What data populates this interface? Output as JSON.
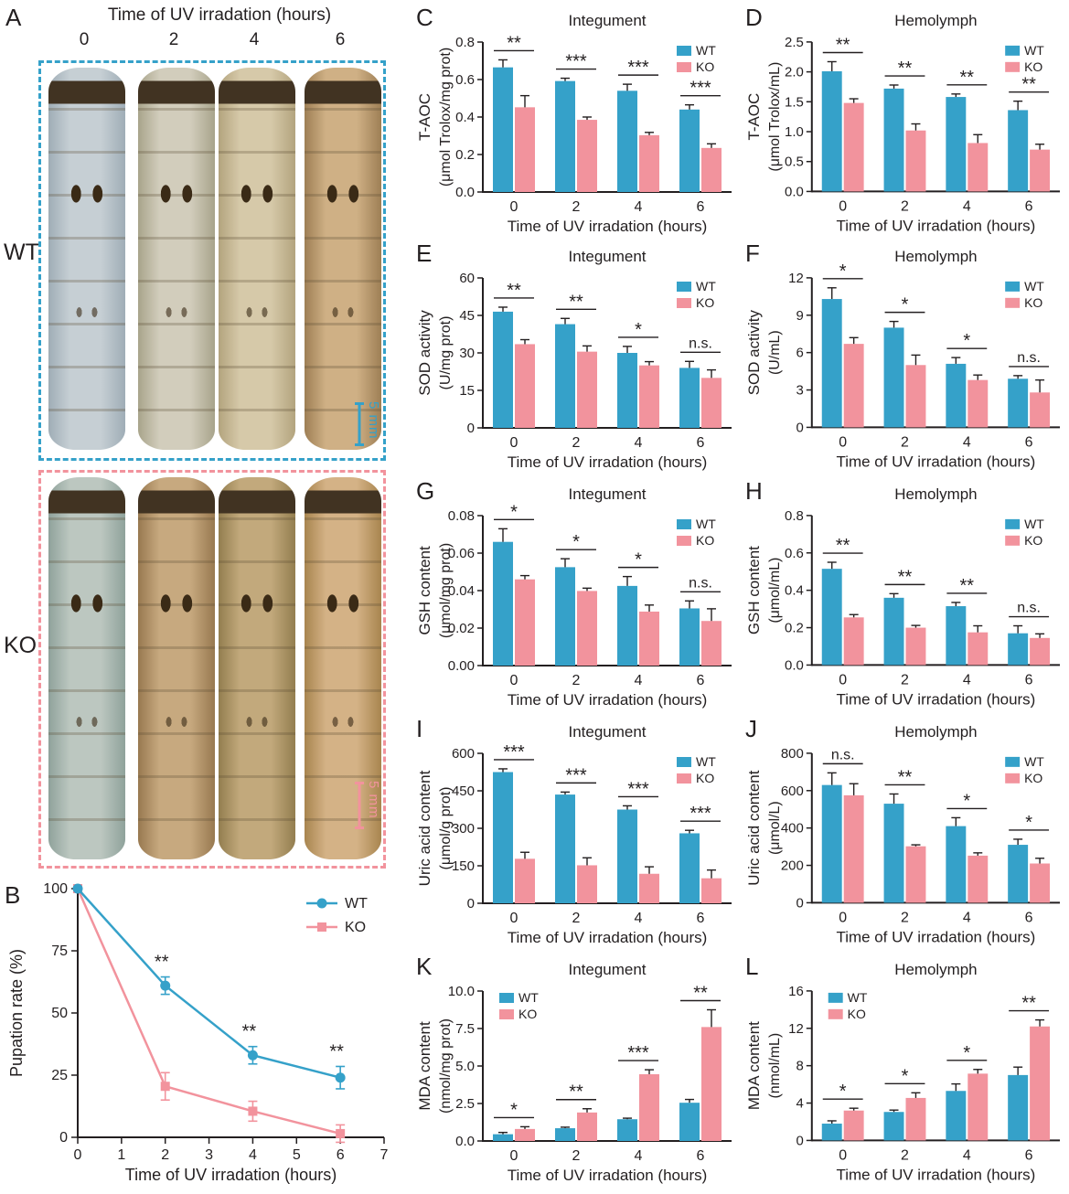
{
  "colors": {
    "wt": "#35A1C9",
    "ko": "#F2939D",
    "axis": "#231F20"
  },
  "figure": {
    "panel_a": {
      "letter": "A",
      "title": "Time of UV irradation (hours)",
      "time_labels": [
        "0",
        "2",
        "4",
        "6"
      ],
      "wt_label": "WT",
      "ko_label": "KO",
      "scale_bar_label": "5 mm",
      "wt_box_color": "#35A1C9",
      "ko_box_color": "#F2939D",
      "wt_larvae": [
        [
          "#c6cfd4",
          "#9fadb6"
        ],
        [
          "#d2cdbc",
          "#a8a48b"
        ],
        [
          "#d6c9a9",
          "#b3a47e"
        ],
        [
          "#cfb085",
          "#9e7f55"
        ]
      ],
      "ko_larvae": [
        [
          "#bcc7c0",
          "#8fa29b"
        ],
        [
          "#c7a97f",
          "#987950"
        ],
        [
          "#c2a97c",
          "#937e4f"
        ],
        [
          "#d4b286",
          "#a8854f"
        ]
      ]
    }
  },
  "chart_data": [
    {
      "type": "line",
      "panel": "B",
      "title": "",
      "ylabel": "Pupation rate (%)",
      "xlabel": "Time of UV irradation (hours)",
      "xlim": [
        0,
        7
      ],
      "xticks": [
        "0",
        "1",
        "2",
        "3",
        "4",
        "5",
        "6",
        "7"
      ],
      "ylim": [
        0,
        100
      ],
      "yticks": [
        0,
        25,
        50,
        75,
        100
      ],
      "ytick_labels": [
        "0",
        "25",
        "50",
        "75",
        "100"
      ],
      "legend_position": "top-right",
      "series": [
        {
          "name": "WT",
          "marker": "circle",
          "x": [
            0,
            2,
            4,
            6
          ],
          "values": [
            100,
            61,
            33,
            24
          ],
          "errors": [
            0,
            3.5,
            3.5,
            4.5
          ]
        },
        {
          "name": "KO",
          "marker": "square",
          "x": [
            0,
            2,
            4,
            6
          ],
          "values": [
            100,
            20.5,
            10.5,
            1.5
          ],
          "errors": [
            0,
            5.5,
            4,
            3.5
          ]
        }
      ],
      "sig": [
        {
          "x": 2,
          "label": "**"
        },
        {
          "x": 4,
          "label": "**"
        },
        {
          "x": 6,
          "label": "**"
        }
      ]
    },
    {
      "type": "bar",
      "panel": "C",
      "title": "Integument",
      "ylabel": [
        "T-AOC",
        "(μmol Trolox/mg prot)"
      ],
      "xlabel": "Time of UV irradation (hours)",
      "categories": [
        "0",
        "2",
        "4",
        "6"
      ],
      "ylim": [
        0,
        0.8
      ],
      "yticks": [
        0,
        0.2,
        0.4,
        0.6,
        0.8
      ],
      "ytick_labels": [
        "0.0",
        "0.2",
        "0.4",
        "0.6",
        "0.8"
      ],
      "legend_position": "right",
      "series": [
        {
          "name": "WT",
          "values": [
            0.665,
            0.592,
            0.54,
            0.44
          ],
          "errors": [
            0.04,
            0.015,
            0.035,
            0.025
          ]
        },
        {
          "name": "KO",
          "values": [
            0.452,
            0.385,
            0.303,
            0.235
          ],
          "errors": [
            0.062,
            0.015,
            0.015,
            0.022
          ]
        }
      ],
      "sig": [
        "**",
        "***",
        "***",
        "***"
      ]
    },
    {
      "type": "bar",
      "panel": "D",
      "title": "Hemolymph",
      "ylabel": [
        "T-AOC",
        "(μmol Trolox/mL)"
      ],
      "xlabel": "Time of UV irradation (hours)",
      "categories": [
        "0",
        "2",
        "4",
        "6"
      ],
      "ylim": [
        0,
        2.5
      ],
      "yticks": [
        0,
        0.5,
        1,
        1.5,
        2,
        2.5
      ],
      "ytick_labels": [
        "0.0",
        "0.5",
        "1.0",
        "1.5",
        "2.0",
        "2.5"
      ],
      "legend_position": "right",
      "series": [
        {
          "name": "WT",
          "values": [
            2.01,
            1.72,
            1.58,
            1.36
          ],
          "errors": [
            0.16,
            0.06,
            0.05,
            0.15
          ]
        },
        {
          "name": "KO",
          "values": [
            1.48,
            1.02,
            0.81,
            0.7
          ],
          "errors": [
            0.07,
            0.11,
            0.14,
            0.09
          ]
        }
      ],
      "sig": [
        "**",
        "**",
        "**",
        "**"
      ]
    },
    {
      "type": "bar",
      "panel": "E",
      "title": "Integument",
      "ylabel": [
        "SOD activity",
        "(U/mg prot)"
      ],
      "xlabel": "Time of UV irradation (hours)",
      "categories": [
        "0",
        "2",
        "4",
        "6"
      ],
      "ylim": [
        0,
        60
      ],
      "yticks": [
        0,
        15,
        30,
        45,
        60
      ],
      "ytick_labels": [
        "0",
        "15",
        "30",
        "45",
        "60"
      ],
      "legend_position": "right",
      "series": [
        {
          "name": "WT",
          "values": [
            46.5,
            41.5,
            30,
            24
          ],
          "errors": [
            1.8,
            2.3,
            2.6,
            2.6
          ]
        },
        {
          "name": "KO",
          "values": [
            33.5,
            30.5,
            25,
            20
          ],
          "errors": [
            1.8,
            2.3,
            1.5,
            3.2
          ]
        }
      ],
      "sig": [
        "**",
        "**",
        "*",
        "n.s."
      ]
    },
    {
      "type": "bar",
      "panel": "F",
      "title": "Hemolymph",
      "ylabel": [
        "SOD activity",
        "(U/mL)"
      ],
      "xlabel": "Time of UV irradation (hours)",
      "categories": [
        "0",
        "2",
        "4",
        "6"
      ],
      "ylim": [
        0,
        12
      ],
      "yticks": [
        0,
        3,
        6,
        9,
        12
      ],
      "ytick_labels": [
        "0",
        "3",
        "6",
        "9",
        "12"
      ],
      "legend_position": "right",
      "series": [
        {
          "name": "WT",
          "values": [
            10.3,
            8,
            5.1,
            3.9
          ],
          "errors": [
            0.9,
            0.5,
            0.5,
            0.25
          ]
        },
        {
          "name": "KO",
          "values": [
            6.7,
            5,
            3.8,
            2.8
          ],
          "errors": [
            0.5,
            0.8,
            0.4,
            1
          ]
        }
      ],
      "sig": [
        "*",
        "*",
        "*",
        "n.s."
      ]
    },
    {
      "type": "bar",
      "panel": "G",
      "title": "Integument",
      "ylabel": [
        "GSH content",
        "(μmol/mg prot)"
      ],
      "xlabel": "Time of UV irradation (hours)",
      "categories": [
        "0",
        "2",
        "4",
        "6"
      ],
      "ylim": [
        0,
        0.08
      ],
      "yticks": [
        0,
        0.02,
        0.04,
        0.06,
        0.08
      ],
      "ytick_labels": [
        "0.00",
        "0.02",
        "0.04",
        "0.06",
        "0.08"
      ],
      "legend_position": "right",
      "series": [
        {
          "name": "WT",
          "values": [
            0.066,
            0.0525,
            0.0425,
            0.0305
          ],
          "errors": [
            0.007,
            0.0045,
            0.005,
            0.004
          ]
        },
        {
          "name": "KO",
          "values": [
            0.046,
            0.0398,
            0.0288,
            0.0238
          ],
          "errors": [
            0.002,
            0.0015,
            0.0035,
            0.0065
          ]
        }
      ],
      "sig": [
        "*",
        "*",
        "*",
        "n.s."
      ]
    },
    {
      "type": "bar",
      "panel": "H",
      "title": "Hemolymph",
      "ylabel": [
        "GSH content",
        "(μmol/mL)"
      ],
      "xlabel": "Time of UV irradation (hours)",
      "categories": [
        "0",
        "2",
        "4",
        "6"
      ],
      "ylim": [
        0,
        0.8
      ],
      "yticks": [
        0,
        0.2,
        0.4,
        0.6,
        0.8
      ],
      "ytick_labels": [
        "0.0",
        "0.2",
        "0.4",
        "0.6",
        "0.8"
      ],
      "legend_position": "right",
      "series": [
        {
          "name": "WT",
          "values": [
            0.515,
            0.36,
            0.315,
            0.17
          ],
          "errors": [
            0.035,
            0.022,
            0.02,
            0.04
          ]
        },
        {
          "name": "KO",
          "values": [
            0.255,
            0.2,
            0.175,
            0.145
          ],
          "errors": [
            0.015,
            0.012,
            0.035,
            0.022
          ]
        }
      ],
      "sig": [
        "**",
        "**",
        "**",
        "n.s."
      ]
    },
    {
      "type": "bar",
      "panel": "I",
      "title": "Integument",
      "ylabel": [
        "Uric acid content",
        "(μmol/g prot)"
      ],
      "xlabel": "Time of UV irradation (hours)",
      "categories": [
        "0",
        "2",
        "4",
        "6"
      ],
      "ylim": [
        0,
        600
      ],
      "yticks": [
        0,
        150,
        300,
        450,
        600
      ],
      "ytick_labels": [
        "0",
        "150",
        "300",
        "450",
        "600"
      ],
      "legend_position": "right",
      "series": [
        {
          "name": "WT",
          "values": [
            525,
            435,
            375,
            280
          ],
          "errors": [
            13,
            10,
            15,
            12
          ]
        },
        {
          "name": "KO",
          "values": [
            178,
            152,
            118,
            100
          ],
          "errors": [
            26,
            30,
            28,
            33
          ]
        }
      ],
      "sig": [
        "***",
        "***",
        "***",
        "***"
      ]
    },
    {
      "type": "bar",
      "panel": "J",
      "title": "Hemolymph",
      "ylabel": [
        "Uric acid content",
        "(μmol/L)"
      ],
      "xlabel": "Time of UV irradation (hours)",
      "categories": [
        "0",
        "2",
        "4",
        "6"
      ],
      "ylim": [
        0,
        800
      ],
      "yticks": [
        0,
        200,
        400,
        600,
        800
      ],
      "ytick_labels": [
        "0",
        "200",
        "400",
        "600",
        "800"
      ],
      "legend_position": "right",
      "series": [
        {
          "name": "WT",
          "values": [
            630,
            530,
            410,
            310
          ],
          "errors": [
            65,
            52,
            45,
            30
          ]
        },
        {
          "name": "KO",
          "values": [
            575,
            302,
            252,
            210
          ],
          "errors": [
            62,
            8,
            15,
            28
          ]
        }
      ],
      "sig": [
        "n.s.",
        "**",
        "*",
        "*"
      ]
    },
    {
      "type": "bar",
      "panel": "K",
      "title": "Integument",
      "ylabel": [
        "MDA content",
        "(nmol/mg prot)"
      ],
      "xlabel": "Time of UV irradation (hours)",
      "categories": [
        "0",
        "2",
        "4",
        "6"
      ],
      "ylim": [
        0,
        10
      ],
      "yticks": [
        0,
        2.5,
        5,
        7.5,
        10
      ],
      "ytick_labels": [
        "0.0",
        "2.5",
        "5.0",
        "7.5",
        "10.0"
      ],
      "legend_position": "left",
      "series": [
        {
          "name": "WT",
          "values": [
            0.45,
            0.85,
            1.45,
            2.55
          ],
          "errors": [
            0.12,
            0.07,
            0.07,
            0.22
          ]
        },
        {
          "name": "KO",
          "values": [
            0.8,
            1.9,
            4.45,
            7.6
          ],
          "errors": [
            0.15,
            0.25,
            0.3,
            1.15
          ]
        }
      ],
      "sig": [
        "*",
        "**",
        "***",
        "**"
      ]
    },
    {
      "type": "bar",
      "panel": "L",
      "title": "Hemolymph",
      "ylabel": [
        "MDA content",
        "(nmol/mL)"
      ],
      "xlabel": "Time of UV irradation (hours)",
      "categories": [
        "0",
        "2",
        "4",
        "6"
      ],
      "ylim": [
        0,
        16
      ],
      "yticks": [
        0,
        4,
        8,
        12,
        16
      ],
      "ytick_labels": [
        "0",
        "4",
        "8",
        "12",
        "16"
      ],
      "legend_position": "left",
      "series": [
        {
          "name": "WT",
          "values": [
            1.8,
            3.05,
            5.3,
            7
          ],
          "errors": [
            0.3,
            0.2,
            0.75,
            0.85
          ]
        },
        {
          "name": "KO",
          "values": [
            3.2,
            4.55,
            7.15,
            12.2
          ],
          "errors": [
            0.25,
            0.55,
            0.45,
            0.7
          ]
        }
      ],
      "sig": [
        "*",
        "*",
        "*",
        "**"
      ]
    }
  ]
}
